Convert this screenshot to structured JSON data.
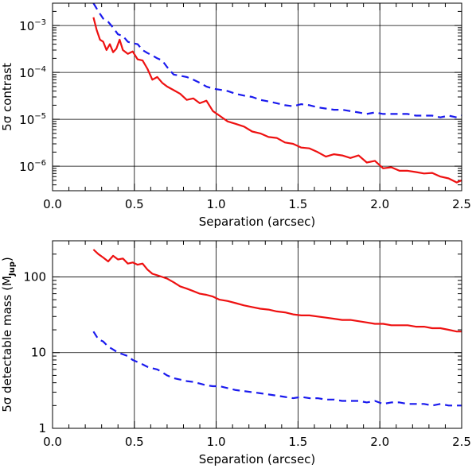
{
  "colors": {
    "series_1": "#ee1111",
    "series_2": "#1a1aee"
  },
  "chart_data": [
    {
      "type": "line",
      "xlabel": "Separation (arcsec)",
      "ylabel": "5σ contrast",
      "xlim": [
        0.0,
        2.5
      ],
      "ylim": [
        3e-07,
        0.003
      ],
      "yscale": "log",
      "grid": true,
      "xticks": [
        0.0,
        0.5,
        1.0,
        1.5,
        2.0,
        2.5
      ],
      "xtick_labels": [
        "0.0",
        "0.5",
        "1.0",
        "1.5",
        "2.0",
        "2.5"
      ],
      "yticks": [
        1e-06,
        1e-05,
        0.0001,
        0.001
      ],
      "ytick_mantissa": [
        "10",
        "10",
        "10",
        "10"
      ],
      "ytick_exponent": [
        "−6",
        "−5",
        "−4",
        "−3"
      ],
      "series": [
        {
          "style": "solid",
          "color": "#ee1111",
          "x": [
            0.25,
            0.27,
            0.29,
            0.31,
            0.33,
            0.35,
            0.37,
            0.39,
            0.41,
            0.43,
            0.46,
            0.49,
            0.52,
            0.55,
            0.58,
            0.61,
            0.64,
            0.67,
            0.7,
            0.74,
            0.78,
            0.82,
            0.86,
            0.9,
            0.94,
            0.98,
            1.02,
            1.07,
            1.12,
            1.17,
            1.22,
            1.27,
            1.32,
            1.37,
            1.42,
            1.47,
            1.52,
            1.57,
            1.62,
            1.67,
            1.72,
            1.77,
            1.82,
            1.87,
            1.92,
            1.97,
            2.02,
            2.07,
            2.12,
            2.17,
            2.22,
            2.27,
            2.32,
            2.37,
            2.42,
            2.47,
            2.5
          ],
          "y": [
            0.0015,
            0.0008,
            0.0005,
            0.00045,
            0.0003,
            0.0004,
            0.00027,
            0.00032,
            0.0005,
            0.0003,
            0.00025,
            0.00028,
            0.00019,
            0.00018,
            0.00012,
            7e-05,
            8e-05,
            6e-05,
            5e-05,
            4.2e-05,
            3.5e-05,
            2.6e-05,
            2.8e-05,
            2.2e-05,
            2.5e-05,
            1.5e-05,
            1.2e-05,
            9e-06,
            8e-06,
            7e-06,
            5.5e-06,
            5e-06,
            4.2e-06,
            4e-06,
            3.2e-06,
            3e-06,
            2.5e-06,
            2.4e-06,
            2e-06,
            1.6e-06,
            1.8e-06,
            1.7e-06,
            1.5e-06,
            1.7e-06,
            1.2e-06,
            1.3e-06,
            9e-07,
            9.5e-07,
            8e-07,
            8e-07,
            7.5e-07,
            7e-07,
            7.2e-07,
            6e-07,
            5.5e-07,
            4.5e-07,
            5e-07
          ]
        },
        {
          "style": "dashed",
          "color": "#1a1aee",
          "x": [
            0.25,
            0.28,
            0.31,
            0.34,
            0.37,
            0.4,
            0.43,
            0.46,
            0.49,
            0.52,
            0.55,
            0.58,
            0.61,
            0.64,
            0.67,
            0.7,
            0.74,
            0.78,
            0.82,
            0.86,
            0.9,
            0.94,
            0.98,
            1.02,
            1.07,
            1.12,
            1.17,
            1.22,
            1.27,
            1.32,
            1.37,
            1.42,
            1.47,
            1.52,
            1.57,
            1.62,
            1.67,
            1.72,
            1.77,
            1.82,
            1.87,
            1.92,
            1.97,
            2.02,
            2.07,
            2.12,
            2.17,
            2.22,
            2.27,
            2.32,
            2.37,
            2.42,
            2.47,
            2.5
          ],
          "y": [
            0.003,
            0.002,
            0.0014,
            0.0012,
            0.0009,
            0.00065,
            0.0006,
            0.00045,
            0.00042,
            0.0004,
            0.0003,
            0.00026,
            0.00023,
            0.0002,
            0.00018,
            0.00013,
            9e-05,
            8.5e-05,
            8e-05,
            7e-05,
            6e-05,
            5e-05,
            4.5e-05,
            4.3e-05,
            4e-05,
            3.5e-05,
            3.2e-05,
            3e-05,
            2.6e-05,
            2.4e-05,
            2.2e-05,
            2e-05,
            1.9e-05,
            2.1e-05,
            2e-05,
            1.8e-05,
            1.7e-05,
            1.6e-05,
            1.6e-05,
            1.5e-05,
            1.4e-05,
            1.3e-05,
            1.4e-05,
            1.3e-05,
            1.3e-05,
            1.3e-05,
            1.3e-05,
            1.2e-05,
            1.2e-05,
            1.2e-05,
            1.1e-05,
            1.2e-05,
            1.1e-05,
            1.2e-05
          ]
        }
      ]
    },
    {
      "type": "line",
      "xlabel": "Separation (arcsec)",
      "ylabel": "5σ detectable mass (M",
      "ylabel_sub": "Jup",
      "ylabel_close": ")",
      "xlim": [
        0.0,
        2.5
      ],
      "ylim": [
        1,
        300
      ],
      "yscale": "log",
      "grid": true,
      "xticks": [
        0.0,
        0.5,
        1.0,
        1.5,
        2.0,
        2.5
      ],
      "xtick_labels": [
        "0.0",
        "0.5",
        "1.0",
        "1.5",
        "2.0",
        "2.5"
      ],
      "yticks": [
        1,
        10,
        100
      ],
      "ytick_labels": [
        "1",
        "10",
        "100"
      ],
      "series": [
        {
          "style": "solid",
          "color": "#ee1111",
          "x": [
            0.25,
            0.28,
            0.31,
            0.34,
            0.37,
            0.4,
            0.43,
            0.46,
            0.49,
            0.52,
            0.55,
            0.58,
            0.61,
            0.64,
            0.67,
            0.7,
            0.74,
            0.78,
            0.82,
            0.86,
            0.9,
            0.94,
            0.98,
            1.02,
            1.07,
            1.12,
            1.17,
            1.22,
            1.27,
            1.32,
            1.37,
            1.42,
            1.47,
            1.52,
            1.57,
            1.62,
            1.67,
            1.72,
            1.77,
            1.82,
            1.87,
            1.92,
            1.97,
            2.02,
            2.07,
            2.12,
            2.17,
            2.22,
            2.27,
            2.32,
            2.37,
            2.42,
            2.47,
            2.5
          ],
          "y": [
            230,
            200,
            180,
            160,
            190,
            170,
            175,
            150,
            155,
            145,
            150,
            125,
            110,
            105,
            100,
            95,
            85,
            75,
            70,
            65,
            60,
            58,
            55,
            50,
            48,
            45,
            42,
            40,
            38,
            37,
            35,
            34,
            32,
            31,
            31,
            30,
            29,
            28,
            27,
            27,
            26,
            25,
            24,
            24,
            23,
            23,
            23,
            22,
            22,
            21,
            21,
            20,
            19,
            19
          ]
        },
        {
          "style": "dashed",
          "color": "#1a1aee",
          "x": [
            0.25,
            0.28,
            0.31,
            0.34,
            0.37,
            0.4,
            0.43,
            0.46,
            0.49,
            0.52,
            0.55,
            0.58,
            0.61,
            0.64,
            0.67,
            0.7,
            0.74,
            0.78,
            0.82,
            0.86,
            0.9,
            0.94,
            0.98,
            1.02,
            1.07,
            1.12,
            1.17,
            1.22,
            1.27,
            1.32,
            1.37,
            1.42,
            1.47,
            1.52,
            1.57,
            1.62,
            1.67,
            1.72,
            1.77,
            1.82,
            1.87,
            1.92,
            1.97,
            2.02,
            2.07,
            2.12,
            2.17,
            2.22,
            2.27,
            2.32,
            2.37,
            2.42,
            2.47,
            2.5
          ],
          "y": [
            19,
            15,
            14,
            12,
            11,
            10,
            9.5,
            9,
            8,
            7.5,
            7,
            6.5,
            6.2,
            6,
            5.5,
            5,
            4.6,
            4.4,
            4.2,
            4.1,
            3.9,
            3.7,
            3.6,
            3.6,
            3.4,
            3.2,
            3.1,
            3.0,
            2.9,
            2.8,
            2.7,
            2.6,
            2.5,
            2.6,
            2.5,
            2.5,
            2.4,
            2.4,
            2.3,
            2.3,
            2.3,
            2.2,
            2.3,
            2.1,
            2.2,
            2.2,
            2.1,
            2.1,
            2.1,
            2.0,
            2.1,
            2.0,
            2.0,
            2.0
          ]
        }
      ]
    }
  ]
}
